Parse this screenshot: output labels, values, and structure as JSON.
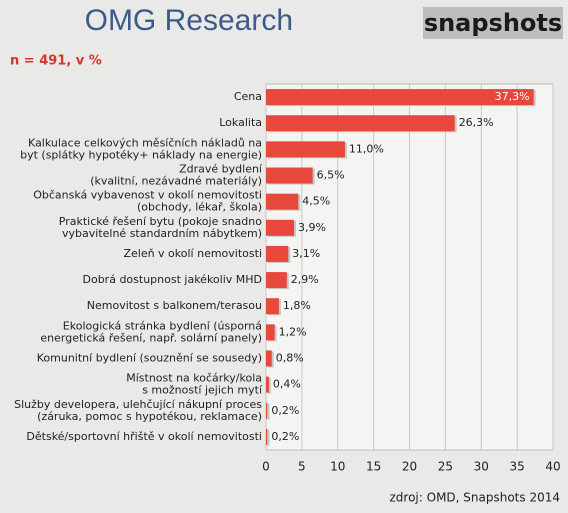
{
  "chart_data": {
    "type": "hbar",
    "logo": "OMG Research",
    "badge": "snapshots",
    "subtitle": "n = 491, v %",
    "source": "zdroj: OMD, Snapshots 2014",
    "categories": [
      [
        "Cena"
      ],
      [
        "Lokalita"
      ],
      [
        "Kalkulace celkových měsíčních nákladů na",
        "byt (splátky hypotéky+ náklady na energie)"
      ],
      [
        "Zdravé bydlení",
        "(kvalitní, nezávadné materiály)"
      ],
      [
        "Občanská vybavenost v okolí nemovitosti",
        "(obchody, lékař, škola)"
      ],
      [
        "Praktické řešení bytu (pokoje snadno",
        "vybavitelné standardním nábytkem)"
      ],
      [
        "Zeleň v okolí nemovitosti"
      ],
      [
        "Dobrá dostupnost jakékoliv MHD"
      ],
      [
        "Nemovitost s balkonem/terasou"
      ],
      [
        "Ekologická stránka bydlení (úsporná",
        "energetická řešení, např. solární panely)"
      ],
      [
        "Komunitní bydlení (souznění se sousedy)"
      ],
      [
        "Místnost na kočárky/kola",
        "s možností jejich mytí"
      ],
      [
        "Služby developera, ulehčující nákupní proces",
        "(záruka, pomoc s hypotékou, reklamace)"
      ],
      [
        "Dětské/sportovní hřiště v okolí nemovitosti"
      ]
    ],
    "values": [
      37.3,
      26.3,
      11.0,
      6.5,
      4.5,
      3.9,
      3.1,
      2.9,
      1.8,
      1.2,
      0.8,
      0.4,
      0.2,
      0.2
    ],
    "value_labels": [
      "37,3%",
      "26,3%",
      "11,0%",
      "6,5%",
      "4,5%",
      "3,9%",
      "3,1%",
      "2,9%",
      "1,8%",
      "1,2%",
      "0,8%",
      "0,4%",
      "0,2%",
      "0,2%"
    ],
    "color": "#e8473b",
    "xlim": [
      0,
      40
    ],
    "xticks": [
      0,
      5,
      10,
      15,
      20,
      25,
      30,
      35,
      40
    ],
    "grid": true
  }
}
